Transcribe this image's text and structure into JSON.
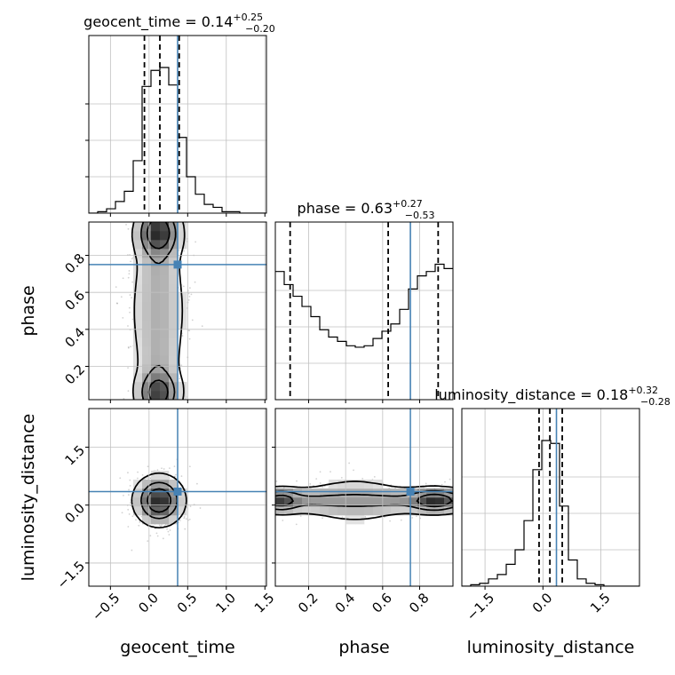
{
  "chart_data": {
    "type": "corner",
    "parameters": [
      "geocent_time",
      "phase",
      "luminosity_distance"
    ],
    "titles": {
      "geocent_time": {
        "label": "geocent_time",
        "median": "0.14",
        "plus": "+0.25",
        "minus": "−0.20"
      },
      "phase": {
        "label": "phase",
        "median": "0.63",
        "plus": "+0.27",
        "minus": "−0.53"
      },
      "luminosity_distance": {
        "label": "luminosity_distance",
        "median": "0.18",
        "plus": "+0.32",
        "minus": "−0.28"
      }
    },
    "axis_labels": {
      "x": [
        "geocent_time",
        "phase",
        "luminosity_distance"
      ],
      "y": [
        "phase",
        "luminosity_distance"
      ]
    },
    "ranges": {
      "geocent_time": [
        -0.78,
        1.52
      ],
      "phase": [
        0.02,
        0.98
      ],
      "luminosity_distance": [
        -2.1,
        2.5
      ]
    },
    "ticks": {
      "geocent_time": {
        "values": [
          -0.5,
          0.0,
          0.5,
          1.0,
          1.5
        ],
        "labels": [
          "−0.5",
          "0.0",
          "0.5",
          "1.0",
          "1.5"
        ]
      },
      "phase": {
        "values": [
          0.2,
          0.4,
          0.6,
          0.8
        ],
        "labels": [
          "0.2",
          "0.4",
          "0.6",
          "0.8"
        ]
      },
      "luminosity_distance": {
        "values": [
          -1.5,
          0.0,
          1.5
        ],
        "labels": [
          "−1.5",
          "0.0",
          "1.5"
        ]
      }
    },
    "truths": {
      "geocent_time": 0.37,
      "phase": 0.75,
      "luminosity_distance": 0.35
    },
    "quantiles": {
      "geocent_time": [
        -0.06,
        0.14,
        0.39
      ],
      "phase": [
        0.1,
        0.63,
        0.9
      ],
      "luminosity_distance": [
        -0.1,
        0.18,
        0.5
      ]
    },
    "histograms": {
      "geocent_time": {
        "edges": [
          -0.78,
          -0.665,
          -0.55,
          -0.435,
          -0.32,
          -0.205,
          -0.09,
          0.025,
          0.14,
          0.255,
          0.37,
          0.485,
          0.6,
          0.715,
          0.83,
          0.945,
          1.06,
          1.175,
          1.29,
          1.405,
          1.52
        ],
        "counts": [
          0,
          0.01,
          0.03,
          0.08,
          0.15,
          0.36,
          0.87,
          0.98,
          1.0,
          0.88,
          0.52,
          0.25,
          0.13,
          0.06,
          0.04,
          0.01,
          0.01,
          0,
          0,
          0
        ]
      },
      "phase": {
        "edges": [
          0.02,
          0.068,
          0.116,
          0.164,
          0.212,
          0.26,
          0.308,
          0.356,
          0.404,
          0.452,
          0.5,
          0.548,
          0.596,
          0.644,
          0.692,
          0.74,
          0.788,
          0.836,
          0.884,
          0.932,
          0.98
        ],
        "counts": [
          0.88,
          0.79,
          0.71,
          0.64,
          0.57,
          0.48,
          0.43,
          0.4,
          0.37,
          0.36,
          0.37,
          0.42,
          0.47,
          0.52,
          0.62,
          0.76,
          0.85,
          0.88,
          0.93,
          0.9
        ]
      },
      "luminosity_distance": {
        "edges": [
          -2.1,
          -1.87,
          -1.64,
          -1.41,
          -1.18,
          -0.95,
          -0.72,
          -0.49,
          -0.26,
          -0.03,
          0.2,
          0.43,
          0.66,
          0.89,
          1.12,
          1.35,
          1.58,
          1.81,
          2.04,
          2.27,
          2.5
        ],
        "counts": [
          0,
          0.01,
          0.02,
          0.05,
          0.08,
          0.15,
          0.25,
          0.45,
          0.8,
          1.0,
          0.98,
          0.55,
          0.18,
          0.05,
          0.02,
          0.01,
          0,
          0,
          0,
          0
        ]
      }
    },
    "density_levels": [
      0.118,
      0.393,
      0.675
    ],
    "grid": true,
    "colors": {
      "truth": "#4682b4",
      "histogram": "#000000",
      "density": "#000000",
      "grid": "#c0c0c0",
      "samples": "#7f7f7f"
    }
  }
}
